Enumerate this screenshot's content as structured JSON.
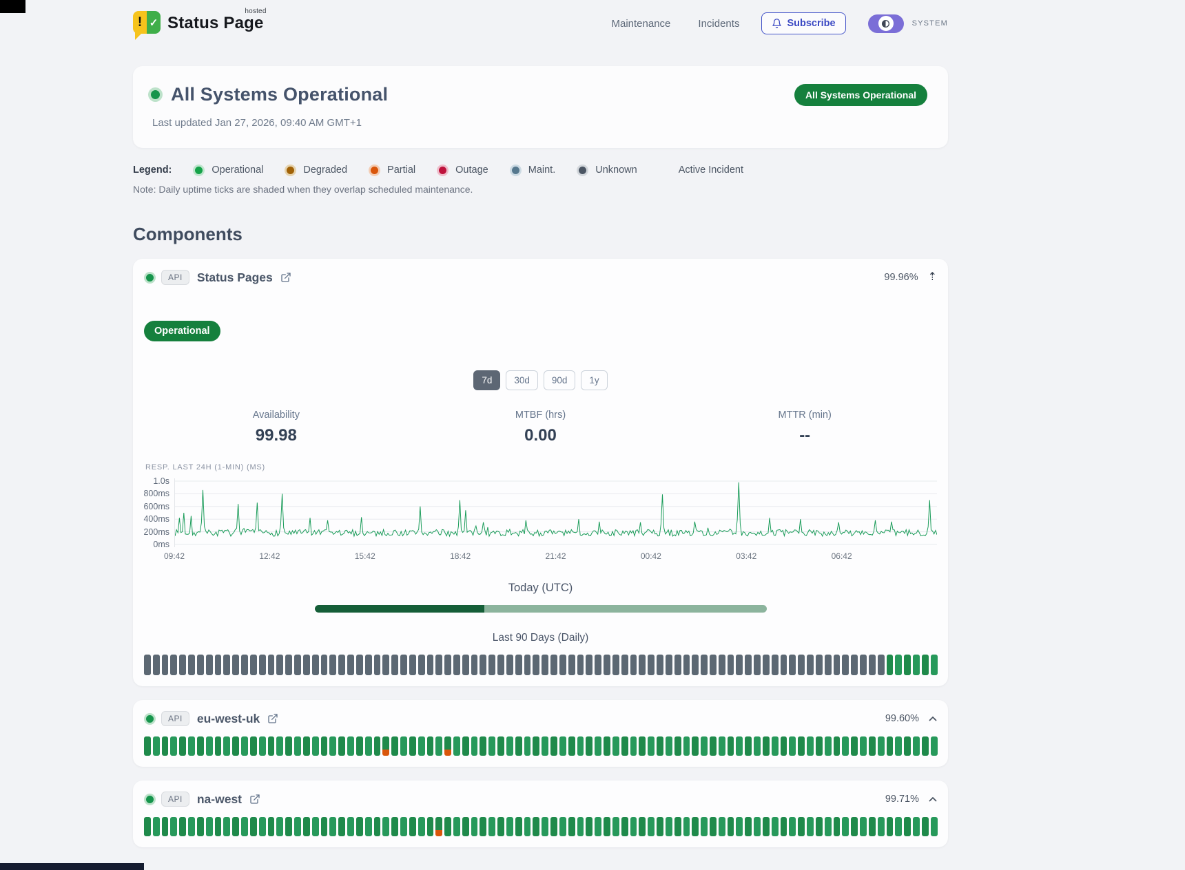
{
  "header": {
    "brand": {
      "name": "Status Page",
      "superscript": "hosted",
      "mark_left": "!",
      "mark_right": "✓"
    },
    "nav": [
      {
        "label": "Maintenance"
      },
      {
        "label": "Incidents"
      }
    ],
    "subscribe_label": "Subscribe",
    "theme_label": "SYSTEM"
  },
  "hero": {
    "title": "All Systems Operational",
    "last_updated": "Last updated Jan 27, 2026, 09:40 AM GMT+1",
    "badge": "All Systems Operational"
  },
  "legend": {
    "label": "Legend:",
    "items": [
      {
        "label": "Operational",
        "color": "#16a34a",
        "ring": "#bfe5cd"
      },
      {
        "label": "Degraded",
        "color": "#a16207",
        "ring": "#e6d3ae"
      },
      {
        "label": "Partial",
        "color": "#d9560b",
        "ring": "#f3cdb4"
      },
      {
        "label": "Outage",
        "color": "#be123c",
        "ring": "#eebecb"
      },
      {
        "label": "Maint.",
        "color": "#56788e",
        "ring": "#ccdae3"
      },
      {
        "label": "Unknown",
        "color": "#4b5563",
        "ring": "#d3d7dc"
      }
    ],
    "active_incident_label": "Active Incident",
    "note": "Note: Daily uptime ticks are shaded when they overlap scheduled maintenance."
  },
  "components_section": {
    "title": "Components",
    "components": [
      {
        "type_badge": "API",
        "name": "Status Pages",
        "uptime": "99.96%",
        "ticks": [
          [
            "u",
            84
          ],
          [
            "o",
            6
          ]
        ],
        "detail": {
          "status_label": "Operational",
          "range_buttons": [
            {
              "label": "7d",
              "active": true
            },
            {
              "label": "30d",
              "active": false
            },
            {
              "label": "90d",
              "active": false
            },
            {
              "label": "1y",
              "active": false
            }
          ],
          "stats": [
            {
              "label": "Availability",
              "value": "99.98"
            },
            {
              "label": "MTBF (hrs)",
              "value": "0.00"
            },
            {
              "label": "MTTR (min)",
              "value": "--"
            }
          ],
          "chart": {
            "type": "line",
            "title": "RESP. LAST 24H (1-MIN) (MS)",
            "line_color": "#169a56",
            "y_ticks": [
              {
                "label": "1.0s",
                "ms": 1000
              },
              {
                "label": "800ms",
                "ms": 800
              },
              {
                "label": "600ms",
                "ms": 600
              },
              {
                "label": "400ms",
                "ms": 400
              },
              {
                "label": "200ms",
                "ms": 200
              },
              {
                "label": "0ms",
                "ms": 0
              }
            ],
            "x_ticks": [
              "09:42",
              "12:42",
              "15:42",
              "18:42",
              "21:42",
              "00:42",
              "03:42",
              "06:42"
            ],
            "ylim_ms": [
              0,
              1000
            ],
            "baseline_ms": {
              "min": 130,
              "max": 235
            },
            "seed": 7,
            "spikes": [
              [
                0.005,
                420
              ],
              [
                0.011,
                500
              ],
              [
                0.022,
                450
              ],
              [
                0.036,
                860
              ],
              [
                0.082,
                640
              ],
              [
                0.107,
                660
              ],
              [
                0.14,
                800
              ],
              [
                0.178,
                420
              ],
              [
                0.2,
                380
              ],
              [
                0.245,
                430
              ],
              [
                0.322,
                600
              ],
              [
                0.374,
                700
              ],
              [
                0.382,
                540
              ],
              [
                0.405,
                350
              ],
              [
                0.46,
                380
              ],
              [
                0.53,
                400
              ],
              [
                0.556,
                360
              ],
              [
                0.61,
                350
              ],
              [
                0.64,
                790
              ],
              [
                0.683,
                360
              ],
              [
                0.74,
                980
              ],
              [
                0.78,
                420
              ],
              [
                0.82,
                400
              ],
              [
                0.87,
                350
              ],
              [
                0.92,
                380
              ],
              [
                0.94,
                360
              ],
              [
                0.99,
                700
              ]
            ]
          },
          "today_bar": {
            "label": "Today (UTC)",
            "progress": 0.375,
            "fill": "#155e38",
            "track": "#8cb49d"
          },
          "daily_label": "Last 90 Days (Daily)"
        }
      },
      {
        "type_badge": "API",
        "name": "eu-west-uk",
        "uptime": "99.60%",
        "ticks": [
          [
            "o",
            27
          ],
          [
            "p",
            1
          ],
          [
            "o",
            6
          ],
          [
            "p",
            1
          ],
          [
            "o",
            55
          ]
        ],
        "detail": null
      },
      {
        "type_badge": "API",
        "name": "na-west",
        "uptime": "99.71%",
        "ticks": [
          [
            "o",
            33
          ],
          [
            "p",
            1
          ],
          [
            "o",
            56
          ]
        ],
        "detail": null
      }
    ]
  },
  "colors": {
    "accent_green": "#15803d",
    "indigo": "#4353c8",
    "toggle_purple": "#7b6ed7",
    "tick_unknown": "#5c6873",
    "tick_operational_a": "#1f8a4b",
    "tick_operational_b": "#27995b",
    "tick_partial_accent": "#d9560b"
  }
}
